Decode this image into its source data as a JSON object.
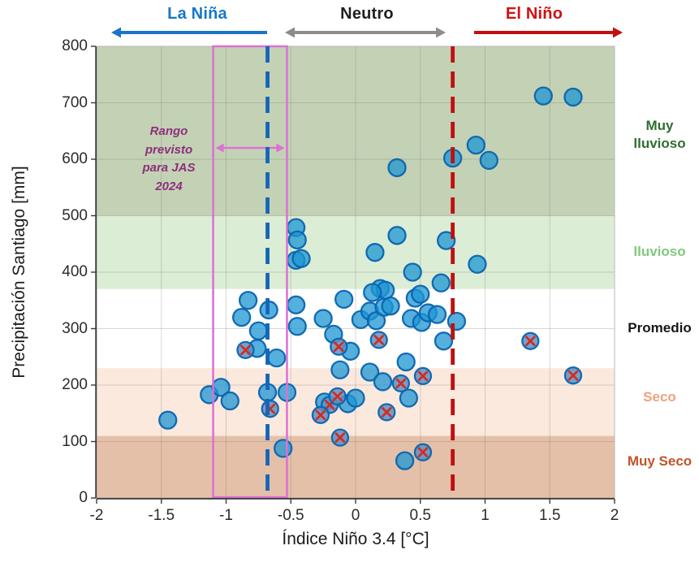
{
  "chart_data": {
    "type": "scatter",
    "title": "",
    "xlabel": "Índice Niño 3.4 [°C]",
    "ylabel": "Precipitación Santiago [mm]",
    "xlim": [
      -2,
      2
    ],
    "ylim": [
      0,
      800
    ],
    "xtick_labels": [
      "-2",
      "-1.5",
      "-1",
      "-0.5",
      "0",
      "0.5",
      "1",
      "1.5",
      "2"
    ],
    "ytick_labels": [
      "0",
      "100",
      "200",
      "300",
      "400",
      "500",
      "600",
      "700",
      "800"
    ],
    "grid": true,
    "legend_position": "none",
    "top_regions": [
      {
        "label": "La Niña",
        "text_color": "#1777c9",
        "arrow": "left",
        "arrow_color": "#1b74cc"
      },
      {
        "label": "Neutro",
        "text_color": "#1f1f1f",
        "arrow": "both",
        "arrow_color": "#8c8c8c"
      },
      {
        "label": "El Niño",
        "text_color": "#cf1111",
        "arrow": "right",
        "arrow_color": "#c40f0f"
      }
    ],
    "bands": [
      {
        "label": "Muy lluvioso",
        "from": 500,
        "to": 800,
        "fill": "#c3d2b4",
        "label_color": "#2f6d31"
      },
      {
        "label": "lluvioso",
        "from": 370,
        "to": 500,
        "fill": "#dcedd5",
        "label_color": "#80c87c"
      },
      {
        "label": "Promedio",
        "from": 230,
        "to": 370,
        "fill": "#ffffff",
        "label_color": "#161616"
      },
      {
        "label": "Seco",
        "from": 110,
        "to": 230,
        "fill": "#fbe9dd",
        "label_color": "#efa27f"
      },
      {
        "label": "Muy Seco",
        "from": 0,
        "to": 110,
        "fill": "#e5c0a8",
        "label_color": "#c2532a"
      }
    ],
    "vlines": [
      {
        "name": "umbral-la-nina",
        "x": -0.68,
        "color": "#1565b8",
        "style": "dashed"
      },
      {
        "name": "umbral-el-nino",
        "x": 0.75,
        "color": "#bf1010",
        "style": "dashed"
      }
    ],
    "range_box": {
      "label": "Rango previsto para JAS 2024",
      "x_from": -1.1,
      "x_to": -0.53,
      "box_color": "#dd6fd6",
      "arrow_y": 620,
      "text_color": "#8c2f7d"
    },
    "series": [
      {
        "name": "points",
        "marker": "circle",
        "fill": "rgba(30,150,210,0.75)",
        "edge": "rgba(10,100,175,0.95)",
        "points": [
          [
            1.45,
            712
          ],
          [
            1.68,
            710
          ],
          [
            0.93,
            625
          ],
          [
            0.75,
            602
          ],
          [
            1.03,
            598
          ],
          [
            0.32,
            585
          ],
          [
            0.32,
            465
          ],
          [
            0.15,
            435
          ],
          [
            0.7,
            456
          ],
          [
            0.94,
            414
          ],
          [
            0.44,
            400
          ],
          [
            -0.46,
            479
          ],
          [
            -0.45,
            457
          ],
          [
            -0.46,
            421
          ],
          [
            -0.42,
            424
          ],
          [
            0.19,
            371
          ],
          [
            0.23,
            368
          ],
          [
            0.13,
            364
          ],
          [
            0.66,
            381
          ],
          [
            -0.83,
            350
          ],
          [
            -0.88,
            320
          ],
          [
            -0.75,
            296
          ],
          [
            -0.76,
            265
          ],
          [
            -0.67,
            333
          ],
          [
            -0.46,
            342
          ],
          [
            -0.45,
            304
          ],
          [
            -0.25,
            318
          ],
          [
            -0.09,
            352
          ],
          [
            -0.17,
            290
          ],
          [
            -0.04,
            260
          ],
          [
            0.04,
            316
          ],
          [
            0.11,
            331
          ],
          [
            0.16,
            314
          ],
          [
            0.22,
            338
          ],
          [
            0.27,
            340
          ],
          [
            0.46,
            354
          ],
          [
            0.5,
            361
          ],
          [
            0.43,
            318
          ],
          [
            0.51,
            311
          ],
          [
            0.56,
            328
          ],
          [
            0.63,
            325
          ],
          [
            0.68,
            278
          ],
          [
            0.78,
            313
          ],
          [
            0.39,
            241
          ],
          [
            -0.61,
            248
          ],
          [
            -1.13,
            183
          ],
          [
            -1.04,
            196
          ],
          [
            -0.97,
            172
          ],
          [
            -1.45,
            138
          ],
          [
            -0.68,
            187
          ],
          [
            -0.53,
            187
          ],
          [
            -0.24,
            170
          ],
          [
            -0.06,
            167
          ],
          [
            0.0,
            177
          ],
          [
            -0.12,
            227
          ],
          [
            0.11,
            223
          ],
          [
            0.21,
            206
          ],
          [
            0.41,
            177
          ],
          [
            -0.56,
            88
          ],
          [
            0.38,
            66
          ]
        ]
      },
      {
        "name": "points_marked_x",
        "marker": "circle-x",
        "fill": "rgba(95,145,195,0.85)",
        "edge": "rgba(10,100,175,0.95)",
        "x_color": "#d32b20",
        "points": [
          [
            -0.85,
            262
          ],
          [
            -0.13,
            268
          ],
          [
            0.18,
            280
          ],
          [
            1.35,
            278
          ],
          [
            1.68,
            217
          ],
          [
            -0.66,
            158
          ],
          [
            -0.2,
            165
          ],
          [
            -0.27,
            147
          ],
          [
            -0.14,
            180
          ],
          [
            0.24,
            152
          ],
          [
            0.35,
            203
          ],
          [
            0.52,
            216
          ],
          [
            -0.12,
            107
          ],
          [
            0.52,
            81
          ]
        ]
      }
    ]
  }
}
